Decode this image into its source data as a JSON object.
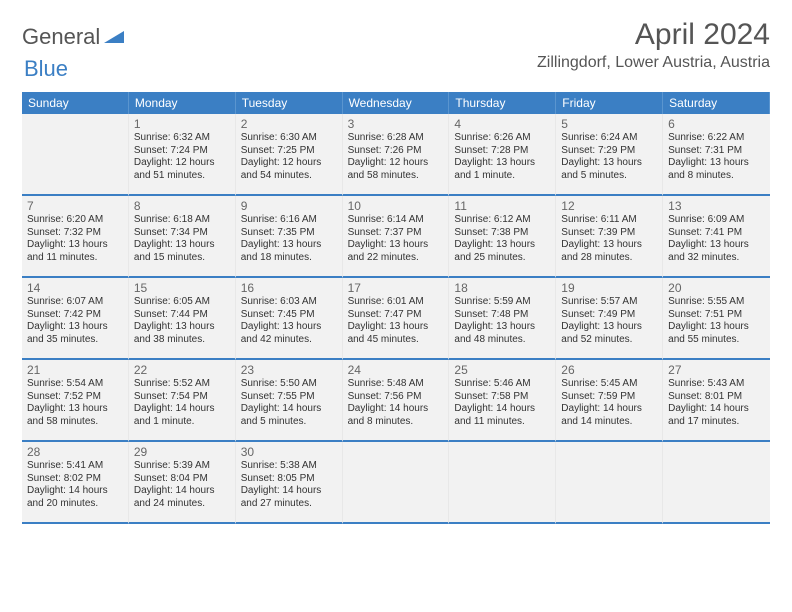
{
  "logo": {
    "general": "General",
    "blue": "Blue"
  },
  "title": "April 2024",
  "location": "Zillingdorf, Lower Austria, Austria",
  "day_headers": [
    "Sunday",
    "Monday",
    "Tuesday",
    "Wednesday",
    "Thursday",
    "Friday",
    "Saturday"
  ],
  "colors": {
    "header_bg": "#3b7fc4",
    "header_text": "#ffffff",
    "cell_bg": "#f2f2f2",
    "border": "#3b7fc4"
  },
  "weeks": [
    [
      {
        "day": "",
        "sunrise": "",
        "sunset": "",
        "daylight1": "",
        "daylight2": ""
      },
      {
        "day": "1",
        "sunrise": "Sunrise: 6:32 AM",
        "sunset": "Sunset: 7:24 PM",
        "daylight1": "Daylight: 12 hours",
        "daylight2": "and 51 minutes."
      },
      {
        "day": "2",
        "sunrise": "Sunrise: 6:30 AM",
        "sunset": "Sunset: 7:25 PM",
        "daylight1": "Daylight: 12 hours",
        "daylight2": "and 54 minutes."
      },
      {
        "day": "3",
        "sunrise": "Sunrise: 6:28 AM",
        "sunset": "Sunset: 7:26 PM",
        "daylight1": "Daylight: 12 hours",
        "daylight2": "and 58 minutes."
      },
      {
        "day": "4",
        "sunrise": "Sunrise: 6:26 AM",
        "sunset": "Sunset: 7:28 PM",
        "daylight1": "Daylight: 13 hours",
        "daylight2": "and 1 minute."
      },
      {
        "day": "5",
        "sunrise": "Sunrise: 6:24 AM",
        "sunset": "Sunset: 7:29 PM",
        "daylight1": "Daylight: 13 hours",
        "daylight2": "and 5 minutes."
      },
      {
        "day": "6",
        "sunrise": "Sunrise: 6:22 AM",
        "sunset": "Sunset: 7:31 PM",
        "daylight1": "Daylight: 13 hours",
        "daylight2": "and 8 minutes."
      }
    ],
    [
      {
        "day": "7",
        "sunrise": "Sunrise: 6:20 AM",
        "sunset": "Sunset: 7:32 PM",
        "daylight1": "Daylight: 13 hours",
        "daylight2": "and 11 minutes."
      },
      {
        "day": "8",
        "sunrise": "Sunrise: 6:18 AM",
        "sunset": "Sunset: 7:34 PM",
        "daylight1": "Daylight: 13 hours",
        "daylight2": "and 15 minutes."
      },
      {
        "day": "9",
        "sunrise": "Sunrise: 6:16 AM",
        "sunset": "Sunset: 7:35 PM",
        "daylight1": "Daylight: 13 hours",
        "daylight2": "and 18 minutes."
      },
      {
        "day": "10",
        "sunrise": "Sunrise: 6:14 AM",
        "sunset": "Sunset: 7:37 PM",
        "daylight1": "Daylight: 13 hours",
        "daylight2": "and 22 minutes."
      },
      {
        "day": "11",
        "sunrise": "Sunrise: 6:12 AM",
        "sunset": "Sunset: 7:38 PM",
        "daylight1": "Daylight: 13 hours",
        "daylight2": "and 25 minutes."
      },
      {
        "day": "12",
        "sunrise": "Sunrise: 6:11 AM",
        "sunset": "Sunset: 7:39 PM",
        "daylight1": "Daylight: 13 hours",
        "daylight2": "and 28 minutes."
      },
      {
        "day": "13",
        "sunrise": "Sunrise: 6:09 AM",
        "sunset": "Sunset: 7:41 PM",
        "daylight1": "Daylight: 13 hours",
        "daylight2": "and 32 minutes."
      }
    ],
    [
      {
        "day": "14",
        "sunrise": "Sunrise: 6:07 AM",
        "sunset": "Sunset: 7:42 PM",
        "daylight1": "Daylight: 13 hours",
        "daylight2": "and 35 minutes."
      },
      {
        "day": "15",
        "sunrise": "Sunrise: 6:05 AM",
        "sunset": "Sunset: 7:44 PM",
        "daylight1": "Daylight: 13 hours",
        "daylight2": "and 38 minutes."
      },
      {
        "day": "16",
        "sunrise": "Sunrise: 6:03 AM",
        "sunset": "Sunset: 7:45 PM",
        "daylight1": "Daylight: 13 hours",
        "daylight2": "and 42 minutes."
      },
      {
        "day": "17",
        "sunrise": "Sunrise: 6:01 AM",
        "sunset": "Sunset: 7:47 PM",
        "daylight1": "Daylight: 13 hours",
        "daylight2": "and 45 minutes."
      },
      {
        "day": "18",
        "sunrise": "Sunrise: 5:59 AM",
        "sunset": "Sunset: 7:48 PM",
        "daylight1": "Daylight: 13 hours",
        "daylight2": "and 48 minutes."
      },
      {
        "day": "19",
        "sunrise": "Sunrise: 5:57 AM",
        "sunset": "Sunset: 7:49 PM",
        "daylight1": "Daylight: 13 hours",
        "daylight2": "and 52 minutes."
      },
      {
        "day": "20",
        "sunrise": "Sunrise: 5:55 AM",
        "sunset": "Sunset: 7:51 PM",
        "daylight1": "Daylight: 13 hours",
        "daylight2": "and 55 minutes."
      }
    ],
    [
      {
        "day": "21",
        "sunrise": "Sunrise: 5:54 AM",
        "sunset": "Sunset: 7:52 PM",
        "daylight1": "Daylight: 13 hours",
        "daylight2": "and 58 minutes."
      },
      {
        "day": "22",
        "sunrise": "Sunrise: 5:52 AM",
        "sunset": "Sunset: 7:54 PM",
        "daylight1": "Daylight: 14 hours",
        "daylight2": "and 1 minute."
      },
      {
        "day": "23",
        "sunrise": "Sunrise: 5:50 AM",
        "sunset": "Sunset: 7:55 PM",
        "daylight1": "Daylight: 14 hours",
        "daylight2": "and 5 minutes."
      },
      {
        "day": "24",
        "sunrise": "Sunrise: 5:48 AM",
        "sunset": "Sunset: 7:56 PM",
        "daylight1": "Daylight: 14 hours",
        "daylight2": "and 8 minutes."
      },
      {
        "day": "25",
        "sunrise": "Sunrise: 5:46 AM",
        "sunset": "Sunset: 7:58 PM",
        "daylight1": "Daylight: 14 hours",
        "daylight2": "and 11 minutes."
      },
      {
        "day": "26",
        "sunrise": "Sunrise: 5:45 AM",
        "sunset": "Sunset: 7:59 PM",
        "daylight1": "Daylight: 14 hours",
        "daylight2": "and 14 minutes."
      },
      {
        "day": "27",
        "sunrise": "Sunrise: 5:43 AM",
        "sunset": "Sunset: 8:01 PM",
        "daylight1": "Daylight: 14 hours",
        "daylight2": "and 17 minutes."
      }
    ],
    [
      {
        "day": "28",
        "sunrise": "Sunrise: 5:41 AM",
        "sunset": "Sunset: 8:02 PM",
        "daylight1": "Daylight: 14 hours",
        "daylight2": "and 20 minutes."
      },
      {
        "day": "29",
        "sunrise": "Sunrise: 5:39 AM",
        "sunset": "Sunset: 8:04 PM",
        "daylight1": "Daylight: 14 hours",
        "daylight2": "and 24 minutes."
      },
      {
        "day": "30",
        "sunrise": "Sunrise: 5:38 AM",
        "sunset": "Sunset: 8:05 PM",
        "daylight1": "Daylight: 14 hours",
        "daylight2": "and 27 minutes."
      },
      {
        "day": "",
        "sunrise": "",
        "sunset": "",
        "daylight1": "",
        "daylight2": ""
      },
      {
        "day": "",
        "sunrise": "",
        "sunset": "",
        "daylight1": "",
        "daylight2": ""
      },
      {
        "day": "",
        "sunrise": "",
        "sunset": "",
        "daylight1": "",
        "daylight2": ""
      },
      {
        "day": "",
        "sunrise": "",
        "sunset": "",
        "daylight1": "",
        "daylight2": ""
      }
    ]
  ]
}
